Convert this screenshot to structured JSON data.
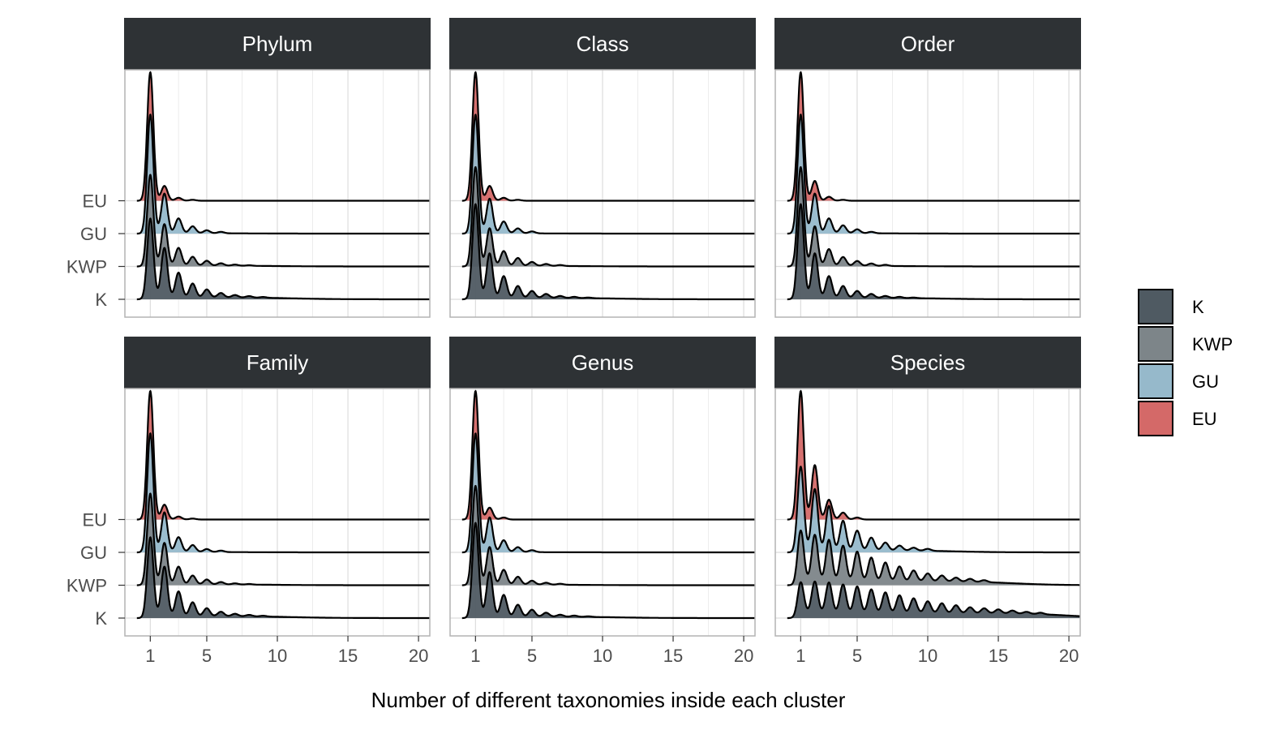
{
  "chart_data": {
    "type": "ridgeline",
    "xlabel": "Number of different taxonomies inside each cluster",
    "x_ticks": [
      1,
      5,
      10,
      15,
      20
    ],
    "xlim": [
      -0.8,
      20.8
    ],
    "y_categories": [
      "K",
      "KWP",
      "GU",
      "EU"
    ],
    "legend": {
      "placement": "right",
      "entries": [
        {
          "label": "K",
          "color": "#4f5a62"
        },
        {
          "label": "KWP",
          "color": "#7d8589"
        },
        {
          "label": "GU",
          "color": "#96b9cb"
        },
        {
          "label": "EU",
          "color": "#d46968"
        }
      ]
    },
    "grid": true,
    "panels": [
      {
        "title": "Phylum",
        "series": [
          {
            "name": "K",
            "peak_heights": [
              0.8,
              0.5,
              0.25,
              0.14,
              0.08,
              0.045,
              0.025,
              0.015,
              0.008
            ],
            "base_height": 0.02
          },
          {
            "name": "KWP",
            "peak_heights": [
              0.92,
              0.42,
              0.18,
              0.09,
              0.05,
              0.025,
              0.012,
              0.006
            ],
            "base_height": 0.008
          },
          {
            "name": "GU",
            "peak_heights": [
              1.2,
              0.4,
              0.15,
              0.07,
              0.03,
              0.015
            ],
            "base_height": 0.004
          },
          {
            "name": "EU",
            "peak_heights": [
              1.3,
              0.15,
              0.03,
              0.01
            ],
            "base_height": 0.0
          }
        ]
      },
      {
        "title": "Class",
        "series": [
          {
            "name": "K",
            "peak_heights": [
              0.95,
              0.45,
              0.22,
              0.12,
              0.07,
              0.04,
              0.02,
              0.012,
              0.006
            ],
            "base_height": 0.015
          },
          {
            "name": "KWP",
            "peak_heights": [
              1.0,
              0.38,
              0.15,
              0.08,
              0.04,
              0.02,
              0.01
            ],
            "base_height": 0.006
          },
          {
            "name": "GU",
            "peak_heights": [
              1.2,
              0.35,
              0.12,
              0.05,
              0.02
            ],
            "base_height": 0.003
          },
          {
            "name": "EU",
            "peak_heights": [
              1.3,
              0.15,
              0.03,
              0.01
            ],
            "base_height": 0.0
          }
        ]
      },
      {
        "title": "Order",
        "series": [
          {
            "name": "K",
            "peak_heights": [
              0.95,
              0.45,
              0.22,
              0.12,
              0.07,
              0.04,
              0.02,
              0.012,
              0.006
            ],
            "base_height": 0.015
          },
          {
            "name": "KWP",
            "peak_heights": [
              1.0,
              0.4,
              0.17,
              0.09,
              0.05,
              0.025,
              0.012
            ],
            "base_height": 0.006
          },
          {
            "name": "GU",
            "peak_heights": [
              1.2,
              0.4,
              0.15,
              0.08,
              0.04,
              0.015
            ],
            "base_height": 0.004
          },
          {
            "name": "EU",
            "peak_heights": [
              1.3,
              0.2,
              0.04,
              0.01
            ],
            "base_height": 0.0
          }
        ]
      },
      {
        "title": "Family",
        "series": [
          {
            "name": "K",
            "peak_heights": [
              0.8,
              0.5,
              0.25,
              0.14,
              0.08,
              0.045,
              0.025,
              0.015,
              0.008
            ],
            "base_height": 0.02
          },
          {
            "name": "KWP",
            "peak_heights": [
              0.92,
              0.42,
              0.18,
              0.09,
              0.05,
              0.025,
              0.012,
              0.006
            ],
            "base_height": 0.008
          },
          {
            "name": "GU",
            "peak_heights": [
              1.2,
              0.4,
              0.15,
              0.07,
              0.03,
              0.015
            ],
            "base_height": 0.004
          },
          {
            "name": "EU",
            "peak_heights": [
              1.3,
              0.15,
              0.03,
              0.01
            ],
            "base_height": 0.0
          }
        ]
      },
      {
        "title": "Genus",
        "series": [
          {
            "name": "K",
            "peak_heights": [
              0.95,
              0.45,
              0.22,
              0.12,
              0.07,
              0.04,
              0.02,
              0.012,
              0.006
            ],
            "base_height": 0.015
          },
          {
            "name": "KWP",
            "peak_heights": [
              1.0,
              0.38,
              0.15,
              0.08,
              0.04,
              0.02,
              0.01
            ],
            "base_height": 0.006
          },
          {
            "name": "GU",
            "peak_heights": [
              1.2,
              0.35,
              0.12,
              0.05,
              0.02
            ],
            "base_height": 0.003
          },
          {
            "name": "EU",
            "peak_heights": [
              1.3,
              0.12,
              0.02
            ],
            "base_height": 0.0
          }
        ]
      },
      {
        "title": "Species",
        "series": [
          {
            "name": "K",
            "peak_heights": [
              0.32,
              0.32,
              0.31,
              0.29,
              0.27,
              0.24,
              0.21,
              0.18,
              0.15,
              0.12,
              0.1,
              0.08,
              0.06,
              0.05,
              0.04,
              0.03,
              0.02,
              0.015
            ],
            "base_height": 0.05
          },
          {
            "name": "KWP",
            "peak_heights": [
              0.52,
              0.47,
              0.42,
              0.36,
              0.3,
              0.24,
              0.19,
              0.15,
              0.11,
              0.08,
              0.06,
              0.04,
              0.03,
              0.02
            ],
            "base_height": 0.04
          },
          {
            "name": "GU",
            "peak_heights": [
              0.85,
              0.62,
              0.45,
              0.3,
              0.2,
              0.13,
              0.08,
              0.05,
              0.03,
              0.02
            ],
            "base_height": 0.02
          },
          {
            "name": "EU",
            "peak_heights": [
              1.3,
              0.55,
              0.2,
              0.07,
              0.02
            ],
            "base_height": 0.0
          }
        ]
      }
    ]
  }
}
